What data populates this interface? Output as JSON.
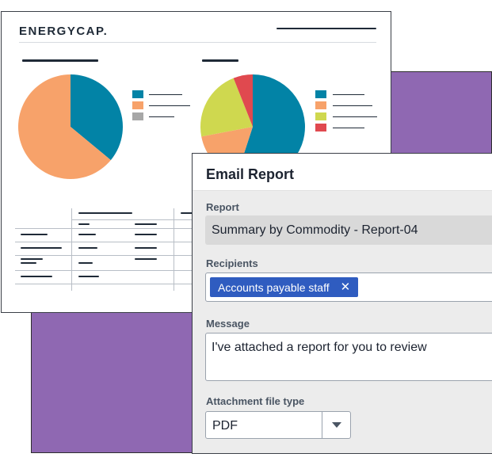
{
  "brand": {
    "name": "ENERGYCAP."
  },
  "email": {
    "title": "Email Report",
    "report_label": "Report",
    "report_value": "Summary by Commodity - Report-04",
    "recipients_label": "Recipients",
    "recipient_chip": "Accounts payable staff",
    "message_label": "Message",
    "message_value": "I've attached a report for you to review",
    "filetype_label": "Attachment file type",
    "filetype_value": "PDF"
  },
  "colors": {
    "teal": "#0283a6",
    "orange": "#f7a26a",
    "gray": "#a7a7a7",
    "lime": "#cfd84f",
    "red": "#e0494f",
    "purple": "#8f68b2",
    "chip_blue": "#2f5cc0"
  },
  "chart_data": [
    {
      "type": "pie",
      "values": [
        36,
        64
      ],
      "colors": [
        "#0283a6",
        "#f7a26a"
      ]
    },
    {
      "type": "pie",
      "values": [
        55,
        17,
        22,
        6
      ],
      "colors": [
        "#0283a6",
        "#f7a26a",
        "#cfd84f",
        "#e0494f"
      ]
    }
  ],
  "icons": {
    "remove_chip": "close-icon",
    "dropdown": "caret-down-icon"
  }
}
